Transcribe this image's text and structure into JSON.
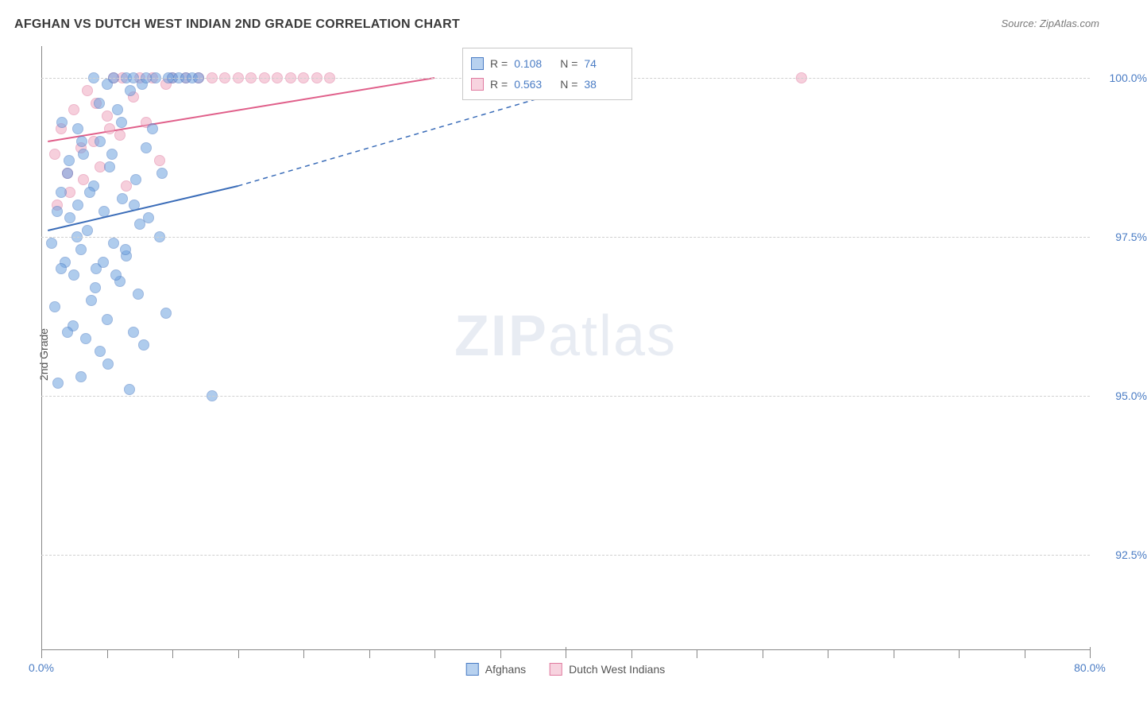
{
  "title": "AFGHAN VS DUTCH WEST INDIAN 2ND GRADE CORRELATION CHART",
  "source": "Source: ZipAtlas.com",
  "watermark_bold": "ZIP",
  "watermark_light": "atlas",
  "y_axis_label": "2nd Grade",
  "chart": {
    "type": "scatter",
    "background_color": "#ffffff",
    "grid_color": "#d0d0d0",
    "axis_color": "#888888",
    "xlim": [
      0,
      80
    ],
    "ylim": [
      91,
      100.5
    ],
    "x_ticks": [
      0,
      40,
      80
    ],
    "x_tick_labels": [
      "0.0%",
      "",
      "80.0%"
    ],
    "x_minor_ticks": [
      5,
      10,
      15,
      20,
      25,
      30,
      35,
      45,
      50,
      55,
      60,
      65,
      70,
      75
    ],
    "y_ticks": [
      92.5,
      95.0,
      97.5,
      100.0
    ],
    "y_tick_labels": [
      "92.5%",
      "95.0%",
      "97.5%",
      "100.0%"
    ],
    "title_fontsize": 16,
    "label_fontsize": 14
  },
  "series": {
    "afghans": {
      "label": "Afghans",
      "color_fill": "#6fa3e0",
      "color_stroke": "#4a7cc4",
      "marker": "circle",
      "marker_size": 14,
      "opacity": 0.55,
      "R": "0.108",
      "N": "74",
      "trend": {
        "x1": 0.5,
        "y1": 97.6,
        "x2": 15,
        "y2": 98.3,
        "dash_x2": 40,
        "dash_y2": 99.8,
        "width": 2,
        "color": "#3a6cb8"
      },
      "points": [
        [
          0.8,
          97.4
        ],
        [
          1.2,
          97.9
        ],
        [
          1.5,
          98.2
        ],
        [
          1.8,
          97.1
        ],
        [
          2.0,
          98.5
        ],
        [
          2.2,
          97.8
        ],
        [
          2.5,
          96.9
        ],
        [
          2.8,
          98.0
        ],
        [
          3.0,
          97.3
        ],
        [
          3.2,
          98.8
        ],
        [
          3.5,
          97.6
        ],
        [
          3.8,
          96.5
        ],
        [
          4.0,
          98.3
        ],
        [
          4.2,
          97.0
        ],
        [
          4.5,
          99.0
        ],
        [
          4.8,
          97.9
        ],
        [
          5.0,
          96.2
        ],
        [
          5.2,
          98.6
        ],
        [
          5.5,
          97.4
        ],
        [
          5.8,
          99.5
        ],
        [
          6.0,
          96.8
        ],
        [
          6.2,
          98.1
        ],
        [
          6.5,
          97.2
        ],
        [
          6.8,
          99.8
        ],
        [
          7.0,
          96.0
        ],
        [
          7.2,
          98.4
        ],
        [
          7.5,
          97.7
        ],
        [
          7.8,
          95.8
        ],
        [
          8.0,
          98.9
        ],
        [
          8.5,
          99.2
        ],
        [
          9.0,
          97.5
        ],
        [
          9.5,
          96.3
        ],
        [
          10.0,
          100.0
        ],
        [
          1.0,
          96.4
        ],
        [
          1.3,
          95.2
        ],
        [
          1.6,
          99.3
        ],
        [
          2.1,
          98.7
        ],
        [
          2.4,
          96.1
        ],
        [
          2.7,
          97.5
        ],
        [
          3.1,
          99.0
        ],
        [
          3.4,
          95.9
        ],
        [
          3.7,
          98.2
        ],
        [
          4.1,
          96.7
        ],
        [
          4.4,
          99.6
        ],
        [
          4.7,
          97.1
        ],
        [
          5.1,
          95.5
        ],
        [
          5.4,
          98.8
        ],
        [
          5.7,
          96.9
        ],
        [
          6.1,
          99.3
        ],
        [
          6.4,
          97.3
        ],
        [
          6.7,
          95.1
        ],
        [
          7.1,
          98.0
        ],
        [
          7.4,
          96.6
        ],
        [
          7.7,
          99.9
        ],
        [
          8.2,
          97.8
        ],
        [
          8.7,
          100.0
        ],
        [
          9.2,
          98.5
        ],
        [
          9.7,
          100.0
        ],
        [
          10.5,
          100.0
        ],
        [
          11.0,
          100.0
        ],
        [
          11.5,
          100.0
        ],
        [
          12.0,
          100.0
        ],
        [
          13.0,
          95.0
        ],
        [
          3.0,
          95.3
        ],
        [
          4.5,
          95.7
        ],
        [
          2.0,
          96.0
        ],
        [
          5.0,
          99.9
        ],
        [
          6.5,
          100.0
        ],
        [
          8.0,
          100.0
        ],
        [
          1.5,
          97.0
        ],
        [
          2.8,
          99.2
        ],
        [
          4.0,
          100.0
        ],
        [
          5.5,
          100.0
        ],
        [
          7.0,
          100.0
        ]
      ]
    },
    "dutch_west_indians": {
      "label": "Dutch West Indians",
      "color_fill": "#f0a8c0",
      "color_stroke": "#e07ba0",
      "marker": "circle",
      "marker_size": 14,
      "opacity": 0.55,
      "R": "0.563",
      "N": "38",
      "trend": {
        "x1": 0.5,
        "y1": 99.0,
        "x2": 30,
        "y2": 100.0,
        "width": 2,
        "color": "#e05f8a"
      },
      "points": [
        [
          1.0,
          98.8
        ],
        [
          1.5,
          99.2
        ],
        [
          2.0,
          98.5
        ],
        [
          2.5,
          99.5
        ],
        [
          3.0,
          98.9
        ],
        [
          3.5,
          99.8
        ],
        [
          4.0,
          99.0
        ],
        [
          4.5,
          98.6
        ],
        [
          5.0,
          99.4
        ],
        [
          5.5,
          100.0
        ],
        [
          6.0,
          99.1
        ],
        [
          6.5,
          98.3
        ],
        [
          7.0,
          99.7
        ],
        [
          7.5,
          100.0
        ],
        [
          8.0,
          99.3
        ],
        [
          8.5,
          100.0
        ],
        [
          9.0,
          98.7
        ],
        [
          9.5,
          99.9
        ],
        [
          10.0,
          100.0
        ],
        [
          11.0,
          100.0
        ],
        [
          12.0,
          100.0
        ],
        [
          13.0,
          100.0
        ],
        [
          14.0,
          100.0
        ],
        [
          15.0,
          100.0
        ],
        [
          16.0,
          100.0
        ],
        [
          17.0,
          100.0
        ],
        [
          18.0,
          100.0
        ],
        [
          19.0,
          100.0
        ],
        [
          20.0,
          100.0
        ],
        [
          21.0,
          100.0
        ],
        [
          22.0,
          100.0
        ],
        [
          1.2,
          98.0
        ],
        [
          2.2,
          98.2
        ],
        [
          3.2,
          98.4
        ],
        [
          4.2,
          99.6
        ],
        [
          5.2,
          99.2
        ],
        [
          6.2,
          100.0
        ],
        [
          58.0,
          100.0
        ]
      ]
    }
  },
  "stats_box": {
    "rows": [
      {
        "series": "afghans",
        "r_label": "R =",
        "n_label": "N ="
      },
      {
        "series": "dutch_west_indians",
        "r_label": "R =",
        "n_label": "N ="
      }
    ]
  },
  "legend": [
    "afghans",
    "dutch_west_indians"
  ]
}
